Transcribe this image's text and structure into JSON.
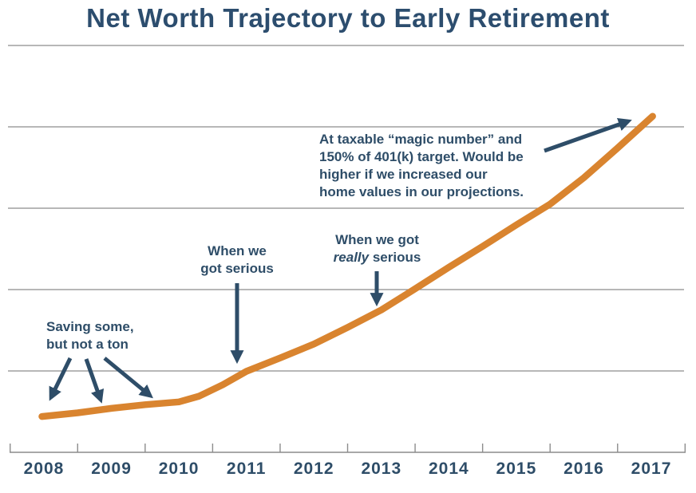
{
  "title": "Net Worth Trajectory to Early Retirement",
  "colors": {
    "navy_text": "#2e4d68",
    "title_navy": "#2c4d6e",
    "line_orange": "#d9842f",
    "gridline_gray": "#8c8c8c",
    "axis_gray": "#8c8c8c"
  },
  "annotations": {
    "saving": {
      "line1": "Saving some,",
      "line2": "but not a ton"
    },
    "serious": {
      "line1": "When we",
      "line2": "got serious"
    },
    "really": {
      "line1": "When we got",
      "italic_word": "really",
      "line2_rest": "serious"
    },
    "magic": {
      "line1": "At taxable “magic number” and",
      "line2": "150% of 401(k) target. Would be",
      "line3": "higher if we increased our",
      "line4": "home values in our projections."
    }
  },
  "chart_data": {
    "type": "line",
    "title": "Net Worth Trajectory to Early Retirement",
    "x": [
      2008,
      2009,
      2010,
      2011,
      2012,
      2013,
      2014,
      2015,
      2016,
      2017
    ],
    "x_tick_labels": [
      "2008",
      "2009",
      "2010",
      "2011",
      "2012",
      "2013",
      "2014",
      "2015",
      "2016",
      "2017"
    ],
    "series": [
      {
        "name": "Net worth (relative scale, y-axis unlabeled)",
        "values": [
          9,
          11,
          12,
          20,
          27,
          35,
          46,
          56,
          68,
          83
        ]
      }
    ],
    "ylim": [
      0,
      100
    ],
    "gridline_values": [
      20,
      40,
      60,
      80,
      100
    ],
    "grid": "horizontal gridlines only, no y-axis tick labels",
    "legend": "none",
    "line_color": "#d9842f",
    "curve_samples": [
      [
        2007.97,
        8.8
      ],
      [
        2008.5,
        9.7
      ],
      [
        2009,
        10.8
      ],
      [
        2009.5,
        11.7
      ],
      [
        2010,
        12.4
      ],
      [
        2010.3,
        13.8
      ],
      [
        2010.65,
        16.6
      ],
      [
        2011,
        19.9
      ],
      [
        2011.5,
        23.2
      ],
      [
        2012,
        26.6
      ],
      [
        2012.5,
        30.7
      ],
      [
        2013,
        35.0
      ],
      [
        2013.5,
        40.2
      ],
      [
        2014,
        45.5
      ],
      [
        2014.5,
        50.6
      ],
      [
        2015,
        55.9
      ],
      [
        2015.5,
        61.0
      ],
      [
        2016,
        67.5
      ],
      [
        2016.5,
        74.8
      ],
      [
        2017.02,
        82.6
      ]
    ],
    "annotations": [
      {
        "text": "Saving some, but not a ton",
        "points_to_years": [
          2008,
          2009,
          2010
        ]
      },
      {
        "text": "When we got serious",
        "points_to_years": [
          2011
        ]
      },
      {
        "text": "When we got really serious",
        "points_to_years": [
          2013
        ]
      },
      {
        "text": "At taxable “magic number” and 150% of 401(k) target. Would be higher if we increased our home values in our projections.",
        "points_to_years": [
          2017
        ]
      }
    ]
  }
}
